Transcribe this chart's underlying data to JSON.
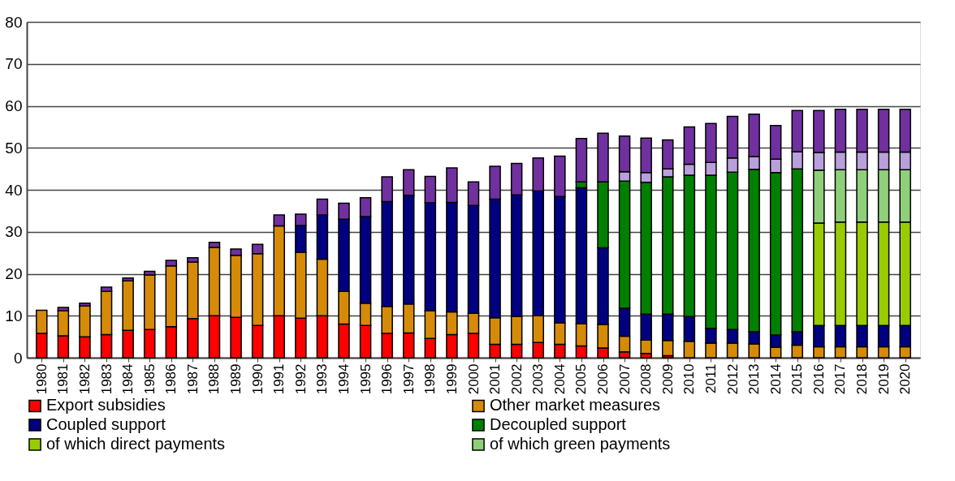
{
  "chart_data": {
    "type": "bar",
    "stacked": true,
    "legend": "bottom",
    "grid": "y",
    "categories": [
      "1980",
      "1981",
      "1982",
      "1983",
      "1984",
      "1985",
      "1986",
      "1987",
      "1988",
      "1989",
      "1990",
      "1991",
      "1992",
      "1993",
      "1994",
      "1995",
      "1996",
      "1997",
      "1998",
      "1999",
      "2000",
      "2001",
      "2002",
      "2003",
      "2004",
      "2005",
      "2006",
      "2007",
      "2008",
      "2009",
      "2010",
      "2011",
      "2012",
      "2013",
      "2014",
      "2015",
      "2016",
      "2017",
      "2018",
      "2019",
      "2020"
    ],
    "ylim": [
      0,
      80
    ],
    "yticks": [
      0,
      10,
      20,
      30,
      40,
      50,
      60,
      70,
      80
    ],
    "series": [
      {
        "name": "Export subsidies",
        "color": "#ff0000",
        "values": [
          5.8,
          5.2,
          5.0,
          5.5,
          6.5,
          6.7,
          7.4,
          9.3,
          10.0,
          9.6,
          7.7,
          10.0,
          9.4,
          10.0,
          8.0,
          7.7,
          5.8,
          5.9,
          4.6,
          5.5,
          5.8,
          3.2,
          3.2,
          3.6,
          3.2,
          2.8,
          2.3,
          1.4,
          1.0,
          0.5,
          null,
          null,
          null,
          null,
          null,
          null,
          null,
          null,
          null,
          null,
          null
        ]
      },
      {
        "name": "Other market measures",
        "color": "#d58b08",
        "values": [
          5.5,
          6.0,
          7.3,
          10.3,
          11.8,
          13.0,
          14.5,
          13.5,
          16.3,
          14.8,
          17.1,
          21.4,
          15.7,
          13.5,
          7.8,
          5.3,
          6.4,
          6.9,
          6.6,
          5.4,
          4.8,
          6.3,
          6.6,
          6.4,
          5.1,
          5.3,
          5.6,
          3.7,
          3.2,
          3.6,
          3.9,
          3.5,
          3.5,
          3.3,
          2.5,
          3.0,
          2.6,
          2.6,
          2.6,
          2.6,
          2.6
        ]
      },
      {
        "name": "Coupled support",
        "color": "#000080",
        "values": [
          null,
          null,
          null,
          null,
          null,
          null,
          null,
          null,
          null,
          null,
          null,
          null,
          6.4,
          10.5,
          17.2,
          20.6,
          25.0,
          25.9,
          25.7,
          26.1,
          25.7,
          28.3,
          29.0,
          29.7,
          30.1,
          32.4,
          18.3,
          6.7,
          6.2,
          6.3,
          5.9,
          3.5,
          3.2,
          2.9,
          2.9,
          3.2,
          5.1,
          5.1,
          5.1,
          5.1,
          5.1
        ]
      },
      {
        "name": "Decoupled support",
        "color": "#008000",
        "values": [
          null,
          null,
          null,
          null,
          null,
          null,
          null,
          null,
          null,
          null,
          null,
          null,
          null,
          null,
          null,
          null,
          null,
          null,
          null,
          null,
          null,
          null,
          null,
          null,
          null,
          1.4,
          15.7,
          30.3,
          31.4,
          32.7,
          33.7,
          36.5,
          37.5,
          38.7,
          38.7,
          38.8,
          null,
          null,
          null,
          null,
          null
        ]
      },
      {
        "name": "of which direct payments",
        "color": "#99cc00",
        "values": [
          null,
          null,
          null,
          null,
          null,
          null,
          null,
          null,
          null,
          null,
          null,
          null,
          null,
          null,
          null,
          null,
          null,
          null,
          null,
          null,
          null,
          null,
          null,
          null,
          null,
          null,
          null,
          null,
          null,
          null,
          null,
          null,
          null,
          null,
          null,
          null,
          24.4,
          24.6,
          24.6,
          24.6,
          24.6
        ]
      },
      {
        "name": "of which green payments",
        "color": "#8fcf7a",
        "values": [
          null,
          null,
          null,
          null,
          null,
          null,
          null,
          null,
          null,
          null,
          null,
          null,
          null,
          null,
          null,
          null,
          null,
          null,
          null,
          null,
          null,
          null,
          null,
          null,
          null,
          null,
          null,
          null,
          null,
          null,
          null,
          null,
          null,
          null,
          null,
          null,
          12.6,
          12.5,
          12.5,
          12.5,
          12.5
        ]
      },
      {
        "color": "#b9a0dc",
        "values": [
          null,
          null,
          null,
          null,
          null,
          null,
          null,
          null,
          null,
          null,
          null,
          null,
          null,
          null,
          null,
          null,
          null,
          null,
          null,
          null,
          null,
          null,
          null,
          null,
          null,
          null,
          null,
          2.2,
          2.3,
          1.9,
          2.6,
          3.0,
          3.4,
          3.0,
          3.2,
          4.1,
          4.2,
          4.2,
          4.2,
          4.2,
          4.2
        ]
      },
      {
        "color": "#7030a0",
        "values": [
          null,
          0.8,
          0.7,
          1.0,
          0.7,
          0.9,
          1.3,
          1.0,
          1.2,
          1.5,
          2.2,
          2.6,
          2.7,
          3.8,
          3.8,
          4.5,
          5.9,
          6.1,
          6.3,
          8.2,
          5.6,
          7.8,
          7.5,
          7.9,
          9.6,
          10.3,
          11.6,
          8.5,
          8.2,
          6.9,
          8.9,
          9.3,
          9.9,
          10.1,
          8.0,
          9.8,
          10.0,
          10.2,
          10.2,
          10.2,
          10.2
        ]
      }
    ]
  }
}
